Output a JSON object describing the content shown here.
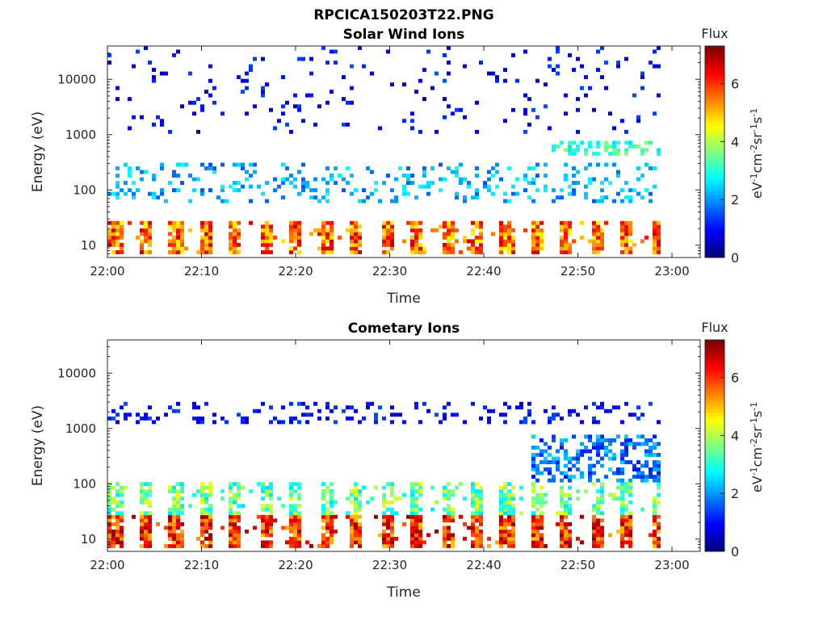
{
  "figure_title": "RPCICA150203T22.PNG",
  "colors": {
    "jet_low": "#00008f",
    "jet_high": "#800000",
    "axis": "#262626"
  },
  "chart_data": [
    {
      "type": "heatmap",
      "title": "Solar Wind Ions",
      "xlabel": "Time",
      "ylabel": "Energy (eV)",
      "xlim": [
        "22:00",
        "23:03"
      ],
      "ylim": [
        6,
        40000
      ],
      "y_scale": "log",
      "x_ticks": [
        "22:00",
        "22:10",
        "22:20",
        "22:30",
        "22:40",
        "22:50",
        "23:00"
      ],
      "y_ticks": [
        "10",
        "100",
        "1000",
        "10000"
      ],
      "colorbar": {
        "title": "Flux",
        "label": "eV-1cm-2sr-1s-1",
        "range": [
          0,
          7.3
        ],
        "ticks": [
          "0",
          "2",
          "4",
          "6"
        ]
      },
      "bands": [
        {
          "e_min": 7,
          "e_max": 28,
          "flux_level": [
            4.5,
            6.8
          ],
          "duty": "bursts every ~3.2 min",
          "note": "low-energy intense band"
        },
        {
          "e_min": 60,
          "e_max": 300,
          "flux_level": [
            1.5,
            2.8
          ],
          "note": "scattered"
        },
        {
          "e_min": 450,
          "e_max": 800,
          "flux_level": [
            2.5,
            3.8
          ],
          "x_range": [
            "22:47",
            "22:59"
          ],
          "note": "solar wind peak"
        },
        {
          "e_min": 1000,
          "e_max": 40000,
          "flux_level": [
            0.4,
            1.5
          ],
          "note": "sparse background"
        }
      ]
    },
    {
      "type": "heatmap",
      "title": "Cometary Ions",
      "xlabel": "Time",
      "ylabel": "Energy (eV)",
      "xlim": [
        "22:00",
        "23:03"
      ],
      "ylim": [
        6,
        40000
      ],
      "y_scale": "log",
      "x_ticks": [
        "22:00",
        "22:10",
        "22:20",
        "22:30",
        "22:40",
        "22:50",
        "23:00"
      ],
      "y_ticks": [
        "10",
        "100",
        "1000",
        "10000"
      ],
      "colorbar": {
        "title": "Flux",
        "label": "eV-1cm-2sr-1s-1",
        "range": [
          0,
          7.3
        ],
        "ticks": [
          "0",
          "2",
          "4",
          "6"
        ]
      },
      "bands": [
        {
          "e_min": 7,
          "e_max": 28,
          "flux_level": [
            5.0,
            7.2
          ],
          "duty": "bursts every ~3.2 min",
          "note": "intense low-energy cometary ions"
        },
        {
          "e_min": 28,
          "e_max": 110,
          "flux_level": [
            2.5,
            4.5
          ],
          "note": "tails above bursts"
        },
        {
          "e_min": 110,
          "e_max": 800,
          "flux_level": [
            1.0,
            2.5
          ],
          "x_range": [
            "22:45",
            "22:59"
          ],
          "note": "sparse higher energy"
        },
        {
          "e_min": 1300,
          "e_max": 3200,
          "flux_level": [
            0.5,
            1.5
          ],
          "note": "rare high-energy pixels"
        }
      ]
    }
  ]
}
